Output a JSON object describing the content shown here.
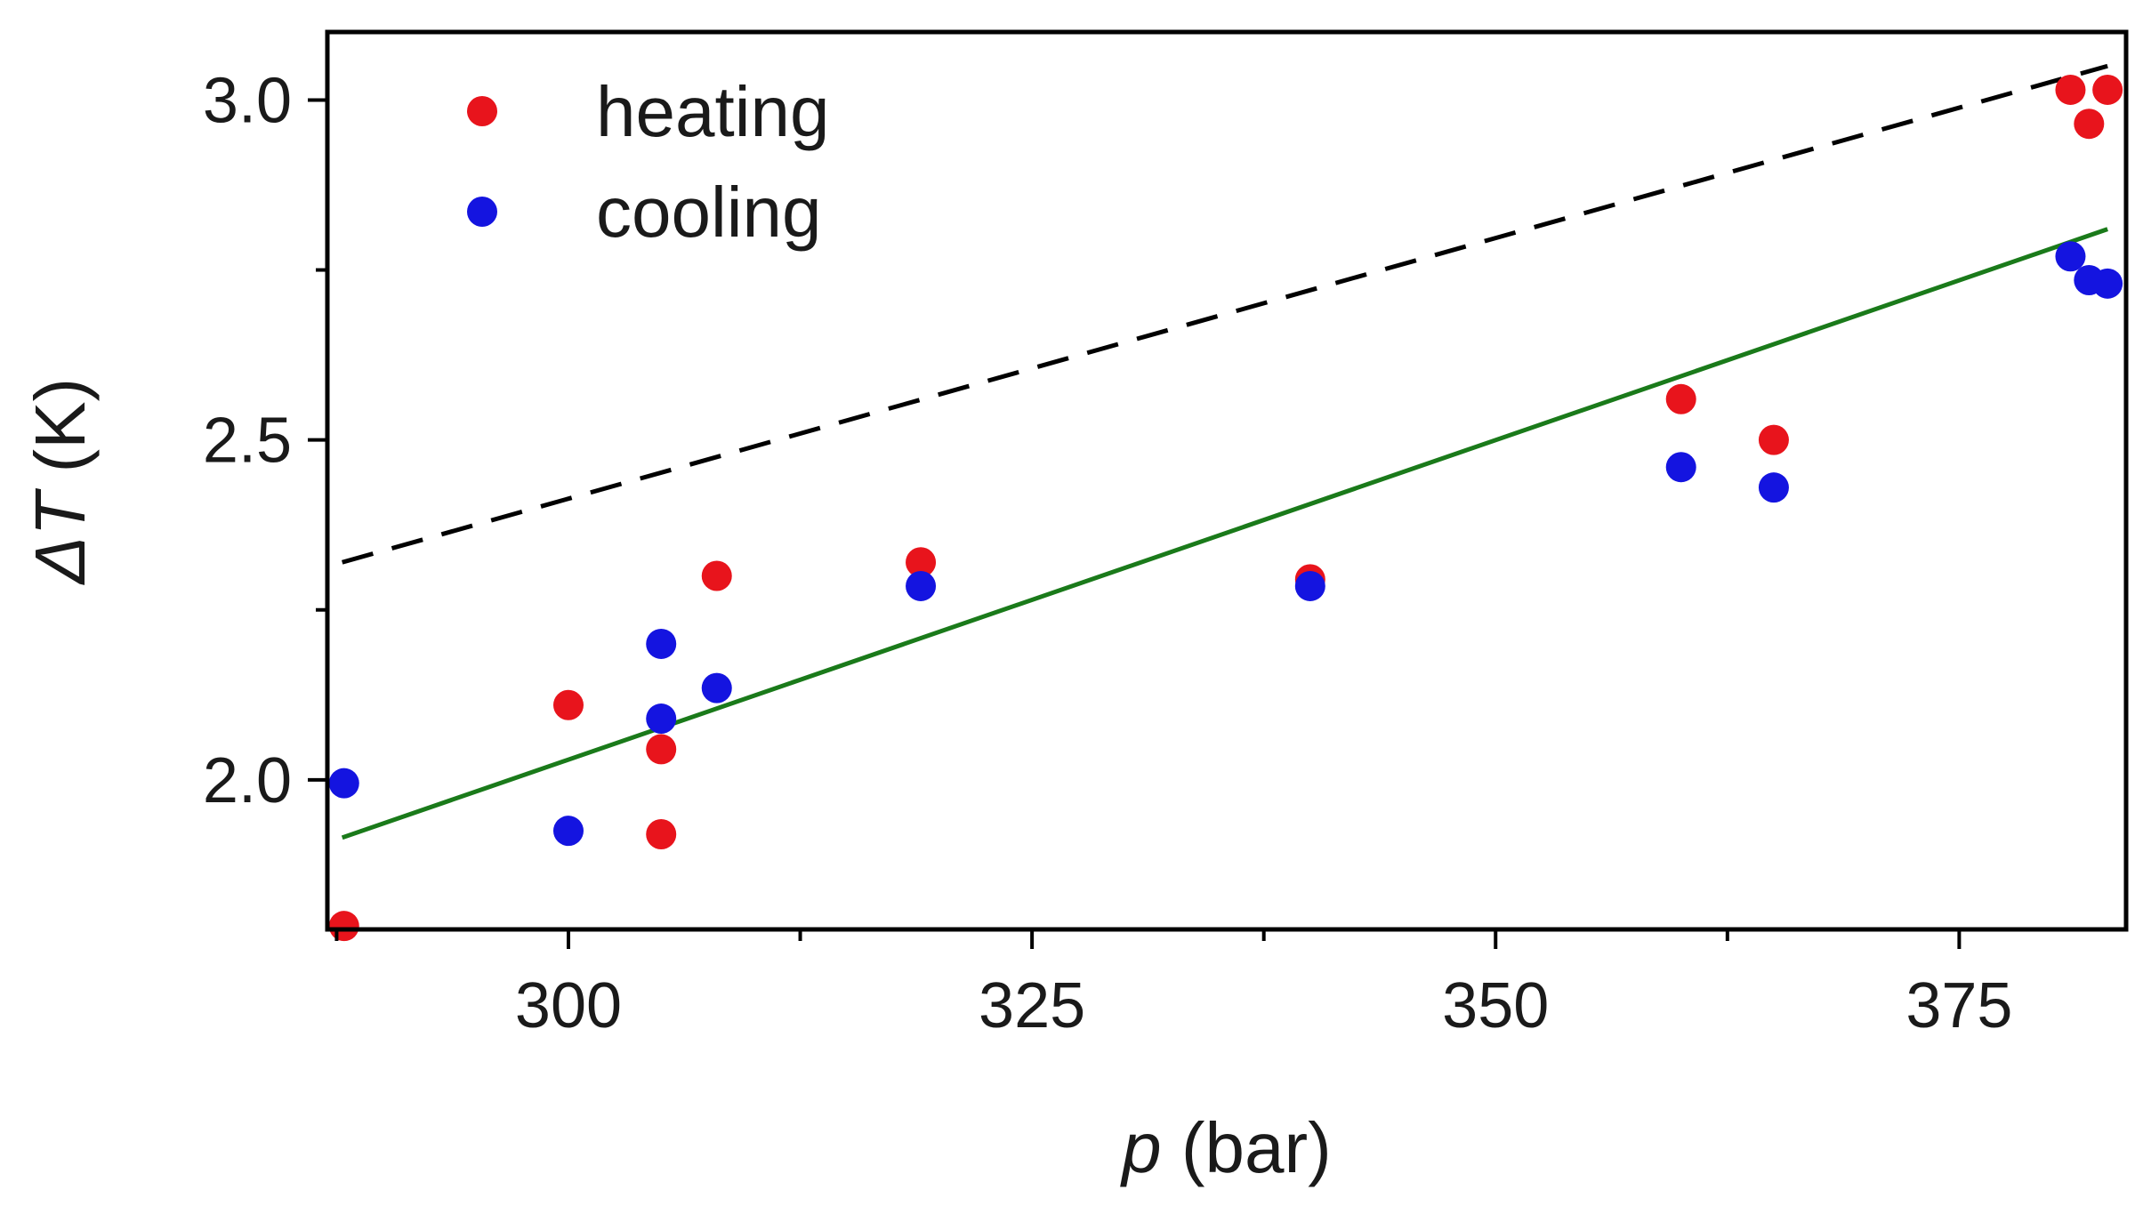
{
  "chart_data": {
    "type": "scatter",
    "xlabel": {
      "var": "p",
      "unit": " (bar)"
    },
    "ylabel": {
      "var": "ΔT",
      "unit": " (K)"
    },
    "xlim": [
      287,
      384
    ],
    "ylim": [
      1.78,
      3.1
    ],
    "x_ticks": [
      300,
      325,
      350,
      375
    ],
    "x_tick_labels": [
      "300",
      "325",
      "350",
      "375"
    ],
    "x_minor_ticks": [
      287.5,
      312.5,
      337.5,
      362.5
    ],
    "y_ticks": [
      2.0,
      2.5,
      3.0
    ],
    "y_tick_labels": [
      "2.0",
      "2.5",
      "3.0"
    ],
    "y_minor_ticks": [
      2.25,
      2.75
    ],
    "grid": false,
    "legend_position": "top-left",
    "series": [
      {
        "name": "heating",
        "color": "#e8141c",
        "marker": "circle",
        "points": [
          [
            287.9,
            1.785
          ],
          [
            300,
            2.11
          ],
          [
            305,
            2.045
          ],
          [
            305,
            1.92
          ],
          [
            308,
            2.3
          ],
          [
            319,
            2.32
          ],
          [
            340,
            2.295
          ],
          [
            360,
            2.56
          ],
          [
            365,
            2.5
          ],
          [
            381,
            3.015
          ],
          [
            382,
            2.965
          ],
          [
            383,
            3.015
          ]
        ]
      },
      {
        "name": "cooling",
        "color": "#1414e0",
        "marker": "circle",
        "points": [
          [
            287.9,
            1.995
          ],
          [
            300,
            1.925
          ],
          [
            305,
            2.2
          ],
          [
            305,
            2.09
          ],
          [
            308,
            2.135
          ],
          [
            319,
            2.285
          ],
          [
            340,
            2.285
          ],
          [
            360,
            2.46
          ],
          [
            365,
            2.43
          ],
          [
            381,
            2.77
          ],
          [
            382,
            2.735
          ],
          [
            383,
            2.73
          ]
        ]
      }
    ],
    "lines": [
      {
        "style": "dashed",
        "color": "#000000",
        "points": [
          [
            287.8,
            2.32
          ],
          [
            383,
            3.05
          ]
        ]
      },
      {
        "style": "solid",
        "color": "#1a7a1a",
        "points": [
          [
            287.8,
            1.915
          ],
          [
            383,
            2.81
          ]
        ]
      }
    ]
  }
}
